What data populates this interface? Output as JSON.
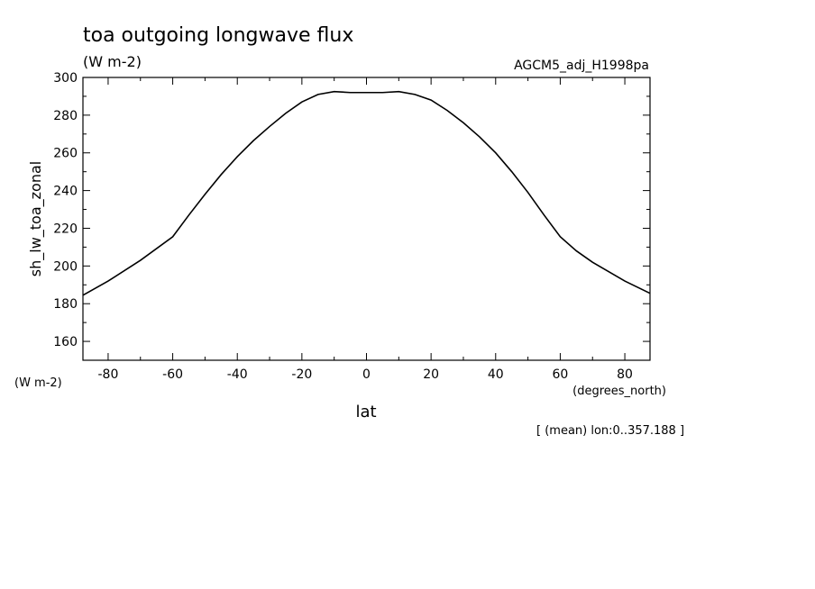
{
  "chart_data": {
    "type": "line",
    "title": "toa outgoing longwave flux",
    "subtitle": "(W m-2)",
    "run_label": "AGCM5_adj_H1998pa",
    "ylabel": "sh_lw_toa_zonal",
    "yunit": "(W m-2)",
    "xlabel": "lat",
    "xunit": "(degrees_north)",
    "footnote": "[ (mean) lon:0..357.188 ]",
    "xlim": [
      -87.8,
      87.8
    ],
    "ylim": [
      150,
      300
    ],
    "xticks": [
      -80,
      -60,
      -40,
      -20,
      0,
      20,
      40,
      60,
      80
    ],
    "xtick_labels": [
      "-80",
      "-60",
      "-40",
      "-20",
      "0",
      "20",
      "40",
      "60",
      "80"
    ],
    "yticks": [
      160,
      180,
      200,
      220,
      240,
      260,
      280,
      300
    ],
    "ytick_labels": [
      "160",
      "180",
      "200",
      "220",
      "240",
      "260",
      "280",
      "300"
    ],
    "grid": false,
    "series": [
      {
        "x": [
          -87.8,
          -80,
          -70,
          -60,
          -55,
          -50,
          -45,
          -40,
          -35,
          -30,
          -25,
          -20,
          -15,
          -10,
          -5,
          0,
          5,
          10,
          15,
          20,
          25,
          30,
          35,
          40,
          45,
          50,
          55,
          60,
          65,
          70,
          80,
          87.8
        ],
        "y": [
          184.5,
          192,
          203,
          215.5,
          227,
          238,
          248.5,
          258,
          266.5,
          274,
          281,
          287,
          291,
          292.5,
          292,
          292,
          292,
          292.5,
          291,
          288,
          282.5,
          276,
          268.5,
          260,
          250,
          239,
          227,
          215.5,
          208,
          202,
          192,
          185.5
        ]
      }
    ]
  }
}
